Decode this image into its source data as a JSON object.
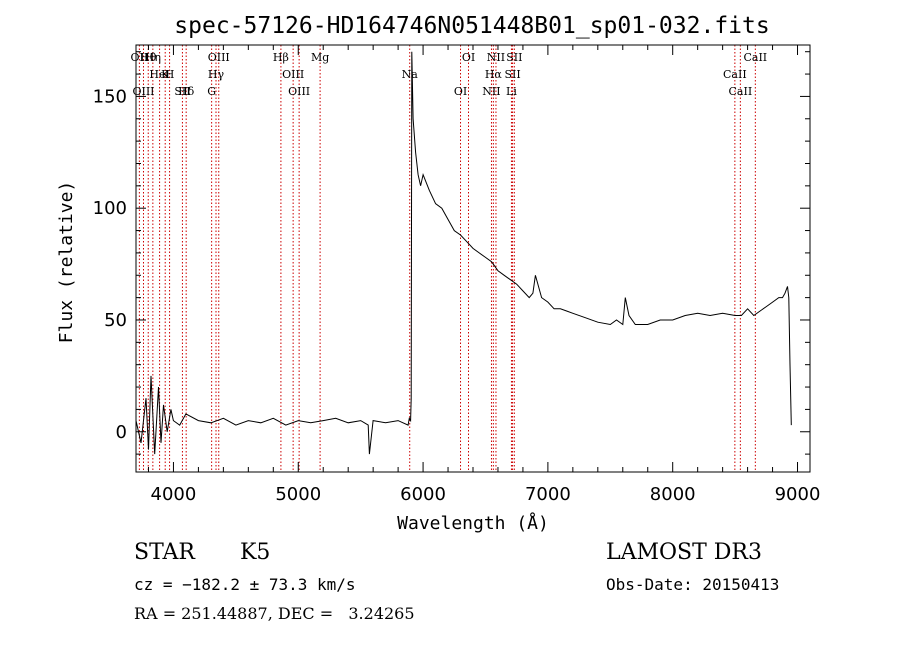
{
  "chart_data": {
    "type": "line",
    "title": "spec-57126-HD164746N051448B01_sp01-032.fits",
    "xlabel": "Wavelength (Å)",
    "ylabel": "Flux (relative)",
    "xlim": [
      3700,
      9100
    ],
    "ylim": [
      -18,
      173
    ],
    "xticks": [
      4000,
      5000,
      6000,
      7000,
      8000,
      9000
    ],
    "yticks": [
      0,
      50,
      100,
      150
    ],
    "xtick_labels": [
      "4000",
      "5000",
      "6000",
      "7000",
      "8000",
      "9000"
    ],
    "ytick_labels": [
      "0",
      "50",
      "100",
      "150"
    ],
    "series": [
      {
        "color": "#000000",
        "x": [
          3700,
          3740,
          3780,
          3800,
          3820,
          3850,
          3880,
          3900,
          3920,
          3950,
          3980,
          4000,
          4050,
          4100,
          4200,
          4300,
          4400,
          4500,
          4600,
          4700,
          4800,
          4900,
          5000,
          5100,
          5200,
          5300,
          5400,
          5500,
          5560,
          5570,
          5600,
          5700,
          5800,
          5880,
          5890,
          5900,
          5905,
          5910,
          5920,
          5940,
          5960,
          5980,
          6000,
          6050,
          6100,
          6150,
          6200,
          6250,
          6300,
          6350,
          6400,
          6450,
          6500,
          6550,
          6600,
          6650,
          6700,
          6750,
          6800,
          6850,
          6880,
          6900,
          6950,
          7000,
          7050,
          7100,
          7150,
          7200,
          7300,
          7400,
          7500,
          7550,
          7600,
          7620,
          7650,
          7700,
          7800,
          7900,
          8000,
          8100,
          8200,
          8300,
          8400,
          8500,
          8550,
          8600,
          8650,
          8700,
          8750,
          8800,
          8850,
          8880,
          8900,
          8920,
          8930,
          8940,
          8950
        ],
        "y": [
          5,
          -5,
          15,
          -8,
          25,
          -10,
          20,
          -5,
          12,
          0,
          10,
          5,
          3,
          8,
          5,
          4,
          6,
          3,
          5,
          4,
          6,
          3,
          5,
          4,
          5,
          6,
          4,
          5,
          3,
          -10,
          5,
          4,
          5,
          3,
          6,
          5,
          15,
          170,
          140,
          125,
          115,
          110,
          115,
          108,
          102,
          100,
          95,
          90,
          88,
          85,
          82,
          80,
          78,
          76,
          72,
          70,
          68,
          66,
          63,
          60,
          62,
          70,
          60,
          58,
          55,
          55,
          54,
          53,
          51,
          49,
          48,
          50,
          48,
          60,
          52,
          48,
          48,
          50,
          50,
          52,
          53,
          52,
          53,
          52,
          52,
          55,
          52,
          54,
          56,
          58,
          60,
          60,
          62,
          65,
          60,
          30,
          3
        ]
      }
    ],
    "lines_red": [
      {
        "label": "Hθ",
        "x": 3798
      },
      {
        "label": "K",
        "x": 3934
      },
      {
        "label": "Hδ",
        "x": 4102
      },
      {
        "label": "OII",
        "x": 3727
      },
      {
        "label": "HeI",
        "x": 3889
      },
      {
        "label": "SII",
        "x": 4072
      },
      {
        "label": "OIII",
        "x": 4363
      },
      {
        "label": "Hγ",
        "x": 4341
      },
      {
        "label": "OIII",
        "x": 3760
      },
      {
        "label": "Hη",
        "x": 3835
      },
      {
        "label": "H",
        "x": 3969
      },
      {
        "label": "G",
        "x": 4306
      },
      {
        "label": "Hβ",
        "x": 4861
      },
      {
        "label": "OIII",
        "x": 4959
      },
      {
        "label": "OIII",
        "x": 5007
      },
      {
        "label": "Mg",
        "x": 5175
      },
      {
        "label": "Na",
        "x": 5893
      },
      {
        "label": "OI",
        "x": 6300
      },
      {
        "label": "OI",
        "x": 6364
      },
      {
        "label": "Hα",
        "x": 6563
      },
      {
        "label": "NII",
        "x": 6548
      },
      {
        "label": "NII",
        "x": 6584
      },
      {
        "label": "SII",
        "x": 6717
      },
      {
        "label": "Li",
        "x": 6708
      },
      {
        "label": "SII",
        "x": 6731
      },
      {
        "label": "CaII",
        "x": 8498
      },
      {
        "label": "CaII",
        "x": 8542
      },
      {
        "label": "CaII",
        "x": 8662
      }
    ]
  },
  "info": {
    "object": "STAR",
    "subclass": "K5",
    "cz": "cz = −182.2 ± 73.3 km/s",
    "radec": "RA = 251.44887, DEC =   3.24265",
    "survey": "LAMOST DR3",
    "obs_date": "Obs-Date: 20150413"
  }
}
